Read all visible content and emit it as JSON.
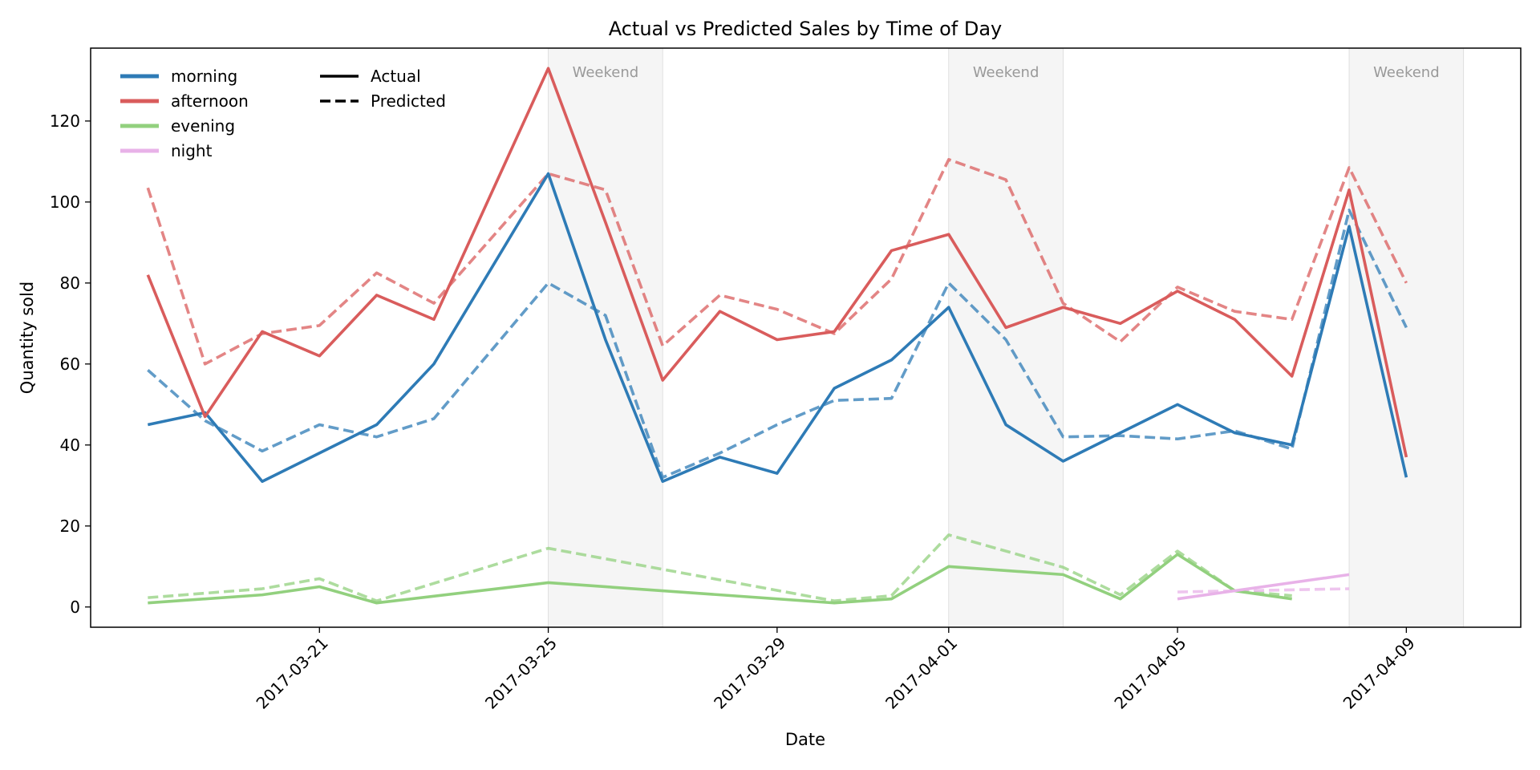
{
  "chart_data": {
    "type": "line",
    "title": "Actual vs Predicted Sales by Time of Day",
    "xlabel": "Date",
    "ylabel": "Quantity sold",
    "x_range": [
      "2017-03-17",
      "2017-04-11"
    ],
    "ylim": [
      -5,
      138
    ],
    "yticks": [
      0,
      20,
      40,
      60,
      80,
      100,
      120
    ],
    "xticks": [
      "2017-03-21",
      "2017-03-25",
      "2017-03-29",
      "2017-04-01",
      "2017-04-05",
      "2017-04-09"
    ],
    "grid": false,
    "weekends": [
      {
        "start": "2017-03-25",
        "end": "2017-03-27",
        "label": "Weekend"
      },
      {
        "start": "2017-04-01",
        "end": "2017-04-03",
        "label": "Weekend"
      },
      {
        "start": "2017-04-08",
        "end": "2017-04-10",
        "label": "Weekend"
      }
    ],
    "style_legend": [
      {
        "label": "Actual",
        "dash": "solid"
      },
      {
        "label": "Predicted",
        "dash": "dashed"
      }
    ],
    "series": [
      {
        "name": "morning",
        "color": "#2e7bb6",
        "actual": [
          [
            "2017-03-18",
            45
          ],
          [
            "2017-03-19",
            48
          ],
          [
            "2017-03-20",
            31
          ],
          [
            "2017-03-21",
            38
          ],
          [
            "2017-03-22",
            45
          ],
          [
            "2017-03-23",
            60
          ],
          [
            "2017-03-25",
            107
          ],
          [
            "2017-03-26",
            66
          ],
          [
            "2017-03-27",
            31
          ],
          [
            "2017-03-28",
            37
          ],
          [
            "2017-03-29",
            33
          ],
          [
            "2017-03-30",
            54
          ],
          [
            "2017-03-31",
            61
          ],
          [
            "2017-04-01",
            74
          ],
          [
            "2017-04-02",
            45
          ],
          [
            "2017-04-03",
            36
          ],
          [
            "2017-04-04",
            43
          ],
          [
            "2017-04-05",
            50
          ],
          [
            "2017-04-06",
            43
          ],
          [
            "2017-04-07",
            40
          ],
          [
            "2017-04-08",
            94
          ],
          [
            "2017-04-09",
            32
          ]
        ],
        "predicted": [
          [
            "2017-03-18",
            58.5
          ],
          [
            "2017-03-19",
            46
          ],
          [
            "2017-03-20",
            38.5
          ],
          [
            "2017-03-21",
            45
          ],
          [
            "2017-03-22",
            42
          ],
          [
            "2017-03-23",
            46.5
          ],
          [
            "2017-03-25",
            80
          ],
          [
            "2017-03-26",
            72
          ],
          [
            "2017-03-27",
            32
          ],
          [
            "2017-03-28",
            38
          ],
          [
            "2017-03-29",
            45
          ],
          [
            "2017-03-30",
            51
          ],
          [
            "2017-03-31",
            51.5
          ],
          [
            "2017-04-01",
            80
          ],
          [
            "2017-04-02",
            66
          ],
          [
            "2017-04-03",
            42
          ],
          [
            "2017-04-04",
            42.3
          ],
          [
            "2017-04-05",
            41.5
          ],
          [
            "2017-04-06",
            43.5
          ],
          [
            "2017-04-07",
            39
          ],
          [
            "2017-04-08",
            98
          ],
          [
            "2017-04-09",
            69
          ]
        ]
      },
      {
        "name": "afternoon",
        "color": "#d95c5c",
        "actual": [
          [
            "2017-03-18",
            82
          ],
          [
            "2017-03-19",
            47
          ],
          [
            "2017-03-20",
            68
          ],
          [
            "2017-03-21",
            62
          ],
          [
            "2017-03-22",
            77
          ],
          [
            "2017-03-23",
            71
          ],
          [
            "2017-03-25",
            133
          ],
          [
            "2017-03-26",
            95
          ],
          [
            "2017-03-27",
            56
          ],
          [
            "2017-03-28",
            73
          ],
          [
            "2017-03-29",
            66
          ],
          [
            "2017-03-30",
            68
          ],
          [
            "2017-03-31",
            88
          ],
          [
            "2017-04-01",
            92
          ],
          [
            "2017-04-02",
            69
          ],
          [
            "2017-04-03",
            74
          ],
          [
            "2017-04-04",
            70
          ],
          [
            "2017-04-05",
            78
          ],
          [
            "2017-04-06",
            71
          ],
          [
            "2017-04-07",
            57
          ],
          [
            "2017-04-08",
            103
          ],
          [
            "2017-04-09",
            37
          ]
        ],
        "predicted": [
          [
            "2017-03-18",
            103.5
          ],
          [
            "2017-03-19",
            60
          ],
          [
            "2017-03-20",
            67.5
          ],
          [
            "2017-03-21",
            69.5
          ],
          [
            "2017-03-22",
            82.5
          ],
          [
            "2017-03-23",
            75
          ],
          [
            "2017-03-25",
            107
          ],
          [
            "2017-03-26",
            103
          ],
          [
            "2017-03-27",
            64.5
          ],
          [
            "2017-03-28",
            77
          ],
          [
            "2017-03-29",
            73.5
          ],
          [
            "2017-03-30",
            67.5
          ],
          [
            "2017-03-31",
            81
          ],
          [
            "2017-04-01",
            110.5
          ],
          [
            "2017-04-02",
            105.5
          ],
          [
            "2017-04-03",
            75
          ],
          [
            "2017-04-04",
            65.5
          ],
          [
            "2017-04-05",
            79
          ],
          [
            "2017-04-06",
            73
          ],
          [
            "2017-04-07",
            71
          ],
          [
            "2017-04-08",
            108.5
          ],
          [
            "2017-04-09",
            80
          ]
        ]
      },
      {
        "name": "evening",
        "color": "#92d07e",
        "actual": [
          [
            "2017-03-18",
            1
          ],
          [
            "2017-03-20",
            3
          ],
          [
            "2017-03-21",
            5
          ],
          [
            "2017-03-22",
            1
          ],
          [
            "2017-03-25",
            6
          ],
          [
            "2017-03-30",
            1
          ],
          [
            "2017-03-31",
            2
          ],
          [
            "2017-04-01",
            10
          ],
          [
            "2017-04-03",
            8
          ],
          [
            "2017-04-04",
            2
          ],
          [
            "2017-04-05",
            13
          ],
          [
            "2017-04-06",
            4
          ],
          [
            "2017-04-07",
            2
          ]
        ],
        "predicted": [
          [
            "2017-03-18",
            2.3
          ],
          [
            "2017-03-20",
            4.5
          ],
          [
            "2017-03-21",
            7
          ],
          [
            "2017-03-22",
            1.5
          ],
          [
            "2017-03-25",
            14.5
          ],
          [
            "2017-03-30",
            1.5
          ],
          [
            "2017-03-31",
            2.8
          ],
          [
            "2017-04-01",
            17.8
          ],
          [
            "2017-04-03",
            9.8
          ],
          [
            "2017-04-04",
            3
          ],
          [
            "2017-04-05",
            13.8
          ],
          [
            "2017-04-06",
            4
          ],
          [
            "2017-04-07",
            2.8
          ]
        ]
      },
      {
        "name": "night",
        "color": "#e8b2e8",
        "actual": [
          [
            "2017-04-05",
            2
          ],
          [
            "2017-04-08",
            8
          ]
        ],
        "predicted": [
          [
            "2017-04-05",
            3.7
          ],
          [
            "2017-04-08",
            4.5
          ]
        ]
      }
    ]
  }
}
